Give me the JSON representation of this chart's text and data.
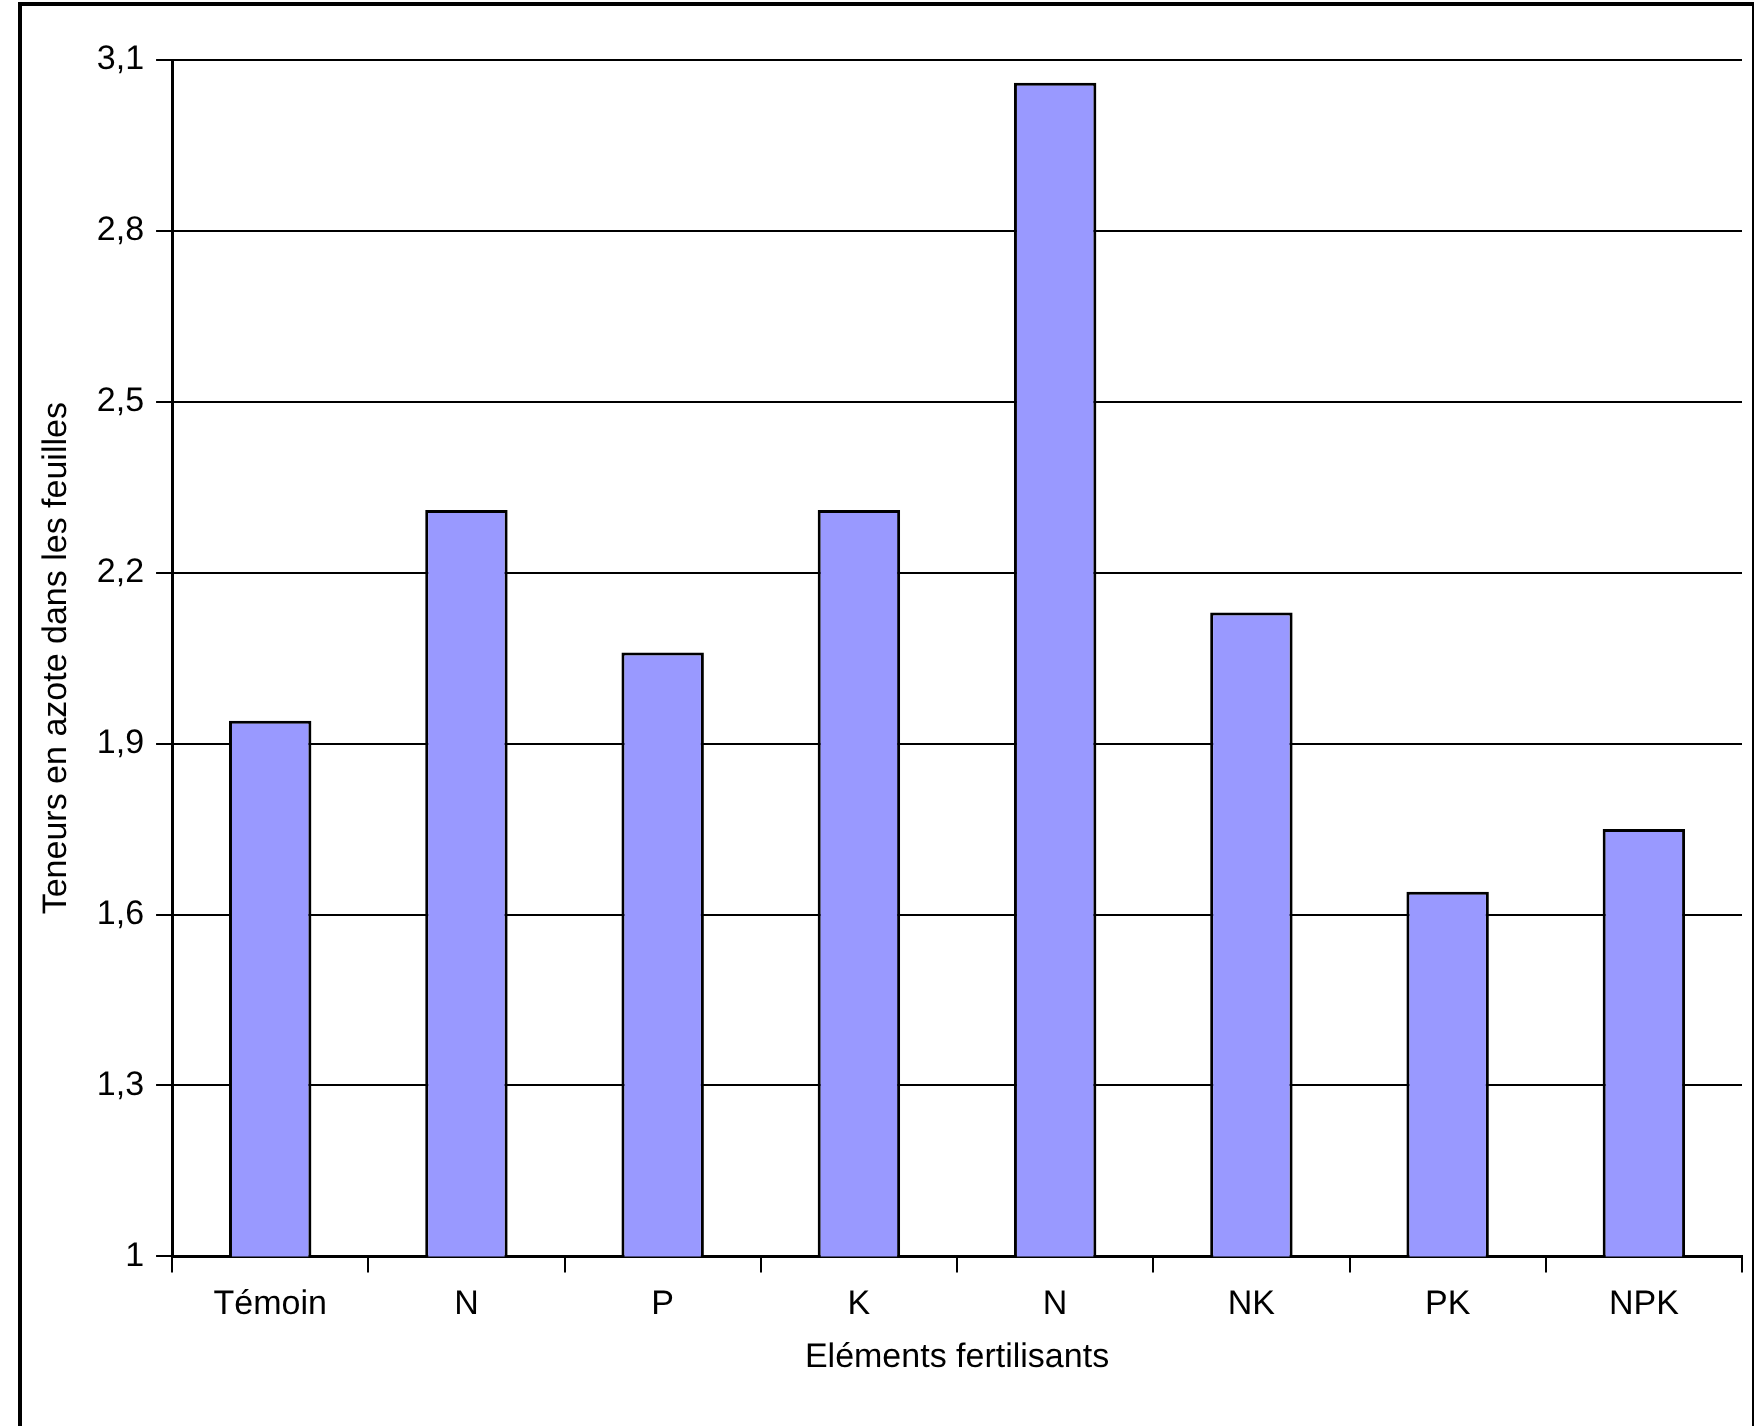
{
  "chart_data": {
    "type": "bar",
    "xlabel": "Eléments fertilisants",
    "ylabel": "Teneurs en azote dans les feuilles",
    "categories": [
      "Témoin",
      "N",
      "P",
      "K",
      "N",
      "NK",
      "PK",
      "NPK"
    ],
    "values": [
      1.94,
      2.31,
      2.06,
      2.31,
      3.06,
      2.13,
      1.64,
      1.75
    ],
    "color": "#9999ff",
    "ylim": [
      1,
      3.1
    ],
    "yticks": [
      {
        "value": 1,
        "label": "1"
      },
      {
        "value": 1.3,
        "label": "1,3"
      },
      {
        "value": 1.6,
        "label": "1,6"
      },
      {
        "value": 1.9,
        "label": "1,9"
      },
      {
        "value": 2.2,
        "label": "2,2"
      },
      {
        "value": 2.5,
        "label": "2,5"
      },
      {
        "value": 2.8,
        "label": "2,8"
      },
      {
        "value": 3.1,
        "label": "3,1"
      }
    ],
    "grid": "y",
    "legend": false
  }
}
